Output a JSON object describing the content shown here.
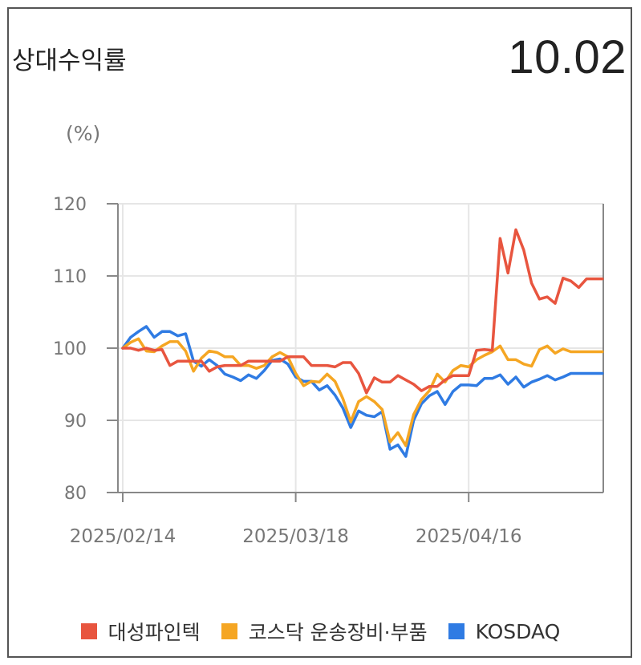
{
  "header": {
    "title": "상대수익률",
    "value": "10.02"
  },
  "chart_data": {
    "type": "line",
    "unit_label": "(%)",
    "ylim": [
      80,
      120
    ],
    "yticks": [
      80,
      90,
      100,
      110,
      120
    ],
    "grid": true,
    "legend_position": "bottom",
    "x_tick_labels": [
      {
        "label": "2025/02/14",
        "index": 0
      },
      {
        "label": "2025/03/18",
        "index": 22
      },
      {
        "label": "2025/04/16",
        "index": 44
      }
    ],
    "n_points": 62,
    "series": [
      {
        "name": "대성파인텍",
        "color": "#e8553f",
        "values": [
          100,
          100,
          99.7,
          100,
          99.7,
          99.8,
          97.6,
          98.2,
          98.2,
          98.2,
          98.2,
          96.8,
          97.4,
          97.6,
          97.6,
          97.6,
          98.2,
          98.2,
          98.2,
          98.2,
          98.2,
          98.8,
          98.8,
          98.8,
          97.6,
          97.6,
          97.6,
          97.4,
          98,
          98,
          96.5,
          93.8,
          95.9,
          95.3,
          95.3,
          96.2,
          95.6,
          95,
          94.1,
          94.7,
          94.7,
          95.6,
          96.2,
          96.2,
          96.2,
          99.7,
          99.8,
          99.7,
          115.2,
          110.4,
          116.4,
          113.6,
          109,
          106.8,
          107.1,
          106.2,
          109.7,
          109.3,
          108.4,
          109.6,
          109.6,
          109.6
        ]
      },
      {
        "name": "코스닥 운송장비·부품",
        "color": "#f5a623",
        "values": [
          100,
          100.8,
          101.3,
          99.6,
          99.5,
          100.3,
          100.9,
          100.9,
          99.6,
          96.8,
          98.6,
          99.6,
          99.4,
          98.8,
          98.8,
          97.6,
          97.6,
          97.2,
          97.6,
          98.8,
          99.4,
          98.8,
          96.5,
          94.8,
          95.4,
          95.3,
          96.4,
          95.4,
          93,
          89.8,
          92.6,
          93.3,
          92.6,
          91.5,
          87,
          88.3,
          86.5,
          90.8,
          92.9,
          94.1,
          96.4,
          95.3,
          96.9,
          97.6,
          97.4,
          98.4,
          99,
          99.5,
          100.3,
          98.4,
          98.4,
          97.8,
          97.5,
          99.8,
          100.3,
          99.3,
          99.9,
          99.5,
          99.5,
          99.5,
          99.5,
          99.5
        ]
      },
      {
        "name": "KOSDAQ",
        "color": "#2f7be3",
        "values": [
          100,
          101.5,
          102.3,
          103,
          101.5,
          102.3,
          102.3,
          101.7,
          102,
          98.2,
          97.5,
          98.4,
          97.6,
          96.4,
          96,
          95.5,
          96.3,
          95.8,
          96.9,
          98.3,
          98.5,
          97.8,
          96,
          95.4,
          95.4,
          94.2,
          94.8,
          93.5,
          91.7,
          89,
          91.3,
          90.7,
          90.5,
          91.2,
          86,
          86.6,
          85,
          90,
          92.3,
          93.4,
          94,
          92.2,
          94,
          94.9,
          94.9,
          94.8,
          95.8,
          95.8,
          96.3,
          95,
          96,
          94.6,
          95.3,
          95.7,
          96.2,
          95.6,
          96,
          96.5,
          96.5,
          96.5,
          96.5,
          96.5
        ]
      }
    ]
  }
}
